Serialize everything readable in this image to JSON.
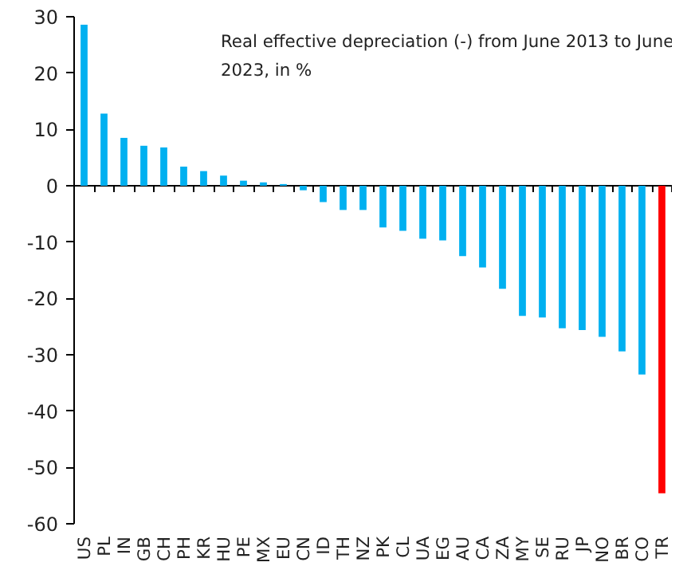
{
  "chart_data": {
    "type": "bar",
    "title": "Real effective depreciation (-) from June 2013 to June 2023,  in %",
    "categories": [
      "US",
      "PL",
      "IN",
      "GB",
      "CH",
      "PH",
      "KR",
      "HU",
      "PE",
      "MX",
      "EU",
      "CN",
      "ID",
      "TH",
      "NZ",
      "PK",
      "CL",
      "UA",
      "EG",
      "AU",
      "CA",
      "ZA",
      "MY",
      "SE",
      "RU",
      "JP",
      "NO",
      "BR",
      "CO",
      "TR"
    ],
    "values": [
      28.6,
      12.8,
      8.5,
      7.1,
      6.8,
      3.4,
      2.6,
      1.8,
      0.9,
      0.6,
      0.3,
      -0.8,
      -2.9,
      -4.3,
      -4.3,
      -7.4,
      -8.0,
      -9.4,
      -9.7,
      -12.5,
      -14.5,
      -18.3,
      -23.1,
      -23.4,
      -25.3,
      -25.6,
      -26.8,
      -29.4,
      -33.5,
      -54.6
    ],
    "colors": [
      "#00b0f0",
      "#00b0f0",
      "#00b0f0",
      "#00b0f0",
      "#00b0f0",
      "#00b0f0",
      "#00b0f0",
      "#00b0f0",
      "#00b0f0",
      "#00b0f0",
      "#00b0f0",
      "#00b0f0",
      "#00b0f0",
      "#00b0f0",
      "#00b0f0",
      "#00b0f0",
      "#00b0f0",
      "#00b0f0",
      "#00b0f0",
      "#00b0f0",
      "#00b0f0",
      "#00b0f0",
      "#00b0f0",
      "#00b0f0",
      "#00b0f0",
      "#00b0f0",
      "#00b0f0",
      "#00b0f0",
      "#00b0f0",
      "#ff0000"
    ],
    "ylim": [
      -60,
      30
    ],
    "yticks": [
      -60,
      -50,
      -40,
      -30,
      -20,
      -10,
      0,
      10,
      20,
      30
    ]
  }
}
